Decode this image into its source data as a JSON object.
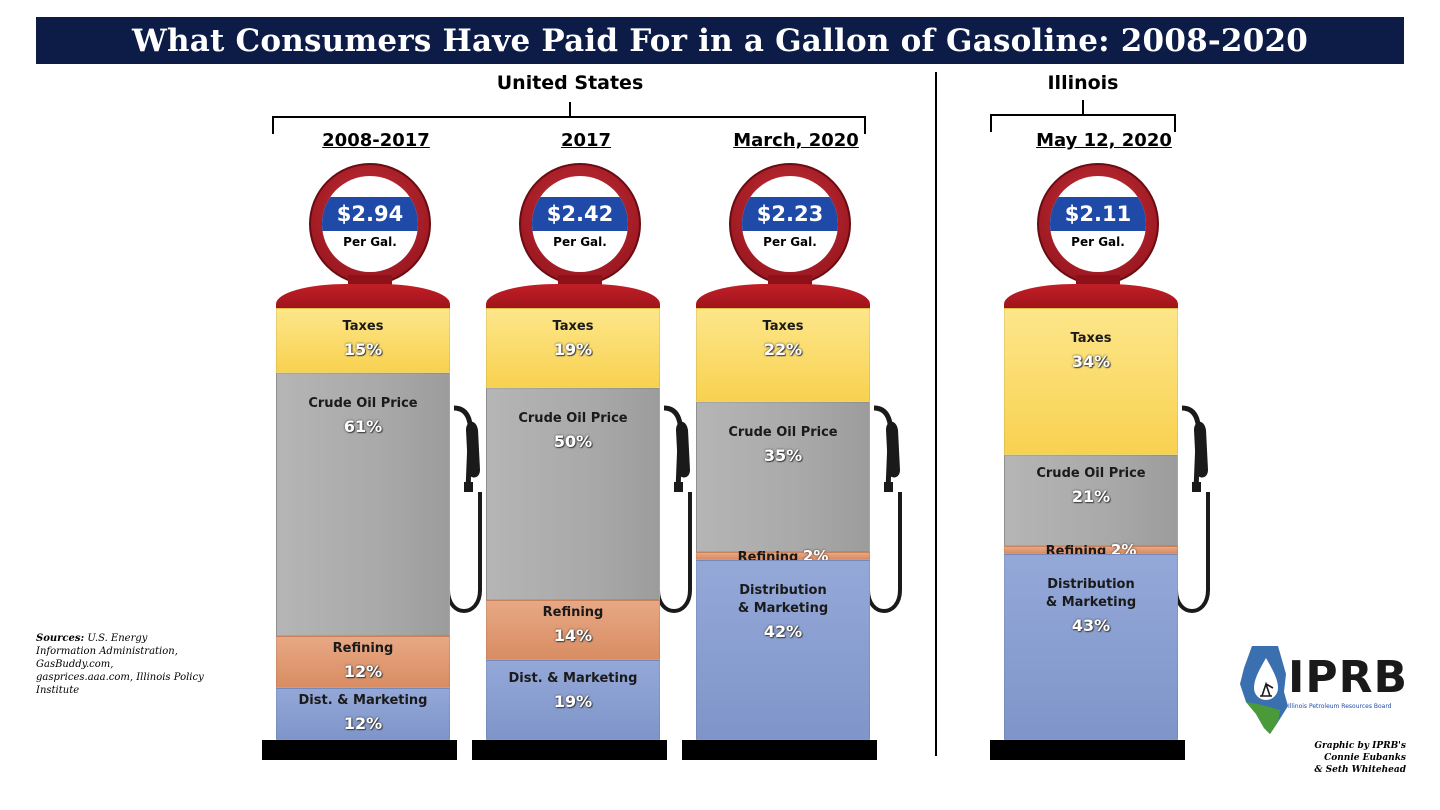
{
  "title": "What Consumers Have Paid For in a Gallon of Gasoline: 2008-2020",
  "regions": {
    "us": "United States",
    "il": "Illinois"
  },
  "per_gal_label": "Per Gal.",
  "sources": {
    "label": "Sources:",
    "text": "U.S. Energy Information Administration, GasBuddy.com, gasprices.aaa.com, Illinois Policy Institute"
  },
  "credit": [
    "Graphic by IPRB's",
    "Connie Eubanks",
    "& Seth  Whitehead"
  ],
  "logo": {
    "text": "IPRB",
    "subtitle": "Illinois Petroleum Resources Board"
  },
  "colors": {
    "title_bg": "#0c1c47",
    "taxes": "#f8d150",
    "crude": "#a9a9a9",
    "refining": "#d98d63",
    "dist": "#7f95c9",
    "pump_red": "#c21f27",
    "price_band": "#1f4aa8"
  },
  "chart_data": {
    "type": "stacked-bar",
    "stack_order": [
      "Taxes",
      "Crude Oil Price",
      "Refining",
      "Distribution & Marketing"
    ],
    "pumps": [
      {
        "period": "2008-2017",
        "region": "United States",
        "price": "$2.94",
        "segments": [
          {
            "key": "taxes",
            "label": "Taxes",
            "value": 15,
            "pct": "15%"
          },
          {
            "key": "crude",
            "label": "Crude Oil Price",
            "value": 61,
            "pct": "61%"
          },
          {
            "key": "refining",
            "label": "Refining",
            "value": 12,
            "pct": "12%"
          },
          {
            "key": "dist",
            "label": "Dist. & Marketing",
            "value": 12,
            "pct": "12%"
          }
        ]
      },
      {
        "period": "2017",
        "region": "United States",
        "price": "$2.42",
        "segments": [
          {
            "key": "taxes",
            "label": "Taxes",
            "value": 19,
            "pct": "19%"
          },
          {
            "key": "crude",
            "label": "Crude Oil Price",
            "value": 50,
            "pct": "50%"
          },
          {
            "key": "refining",
            "label": "Refining",
            "value": 14,
            "pct": "14%"
          },
          {
            "key": "dist",
            "label": "Dist. & Marketing",
            "value": 19,
            "pct": "19%"
          }
        ]
      },
      {
        "period": "March, 2020",
        "region": "United States",
        "price": "$2.23",
        "segments": [
          {
            "key": "taxes",
            "label": "Taxes",
            "value": 22,
            "pct": "22%"
          },
          {
            "key": "crude",
            "label": "Crude Oil Price",
            "value": 35,
            "pct": "35%"
          },
          {
            "key": "refining",
            "label": "Refining",
            "value": 2,
            "pct": "2%"
          },
          {
            "key": "dist",
            "label": "Distribution & Marketing",
            "value": 42,
            "pct": "42%"
          }
        ]
      },
      {
        "period": "May 12, 2020",
        "region": "Illinois",
        "price": "$2.11",
        "segments": [
          {
            "key": "taxes",
            "label": "Taxes",
            "value": 34,
            "pct": "34%"
          },
          {
            "key": "crude",
            "label": "Crude Oil Price",
            "value": 21,
            "pct": "21%"
          },
          {
            "key": "refining",
            "label": "Refining",
            "value": 2,
            "pct": "2%"
          },
          {
            "key": "dist",
            "label": "Distribution & Marketing",
            "value": 43,
            "pct": "43%"
          }
        ]
      }
    ]
  }
}
